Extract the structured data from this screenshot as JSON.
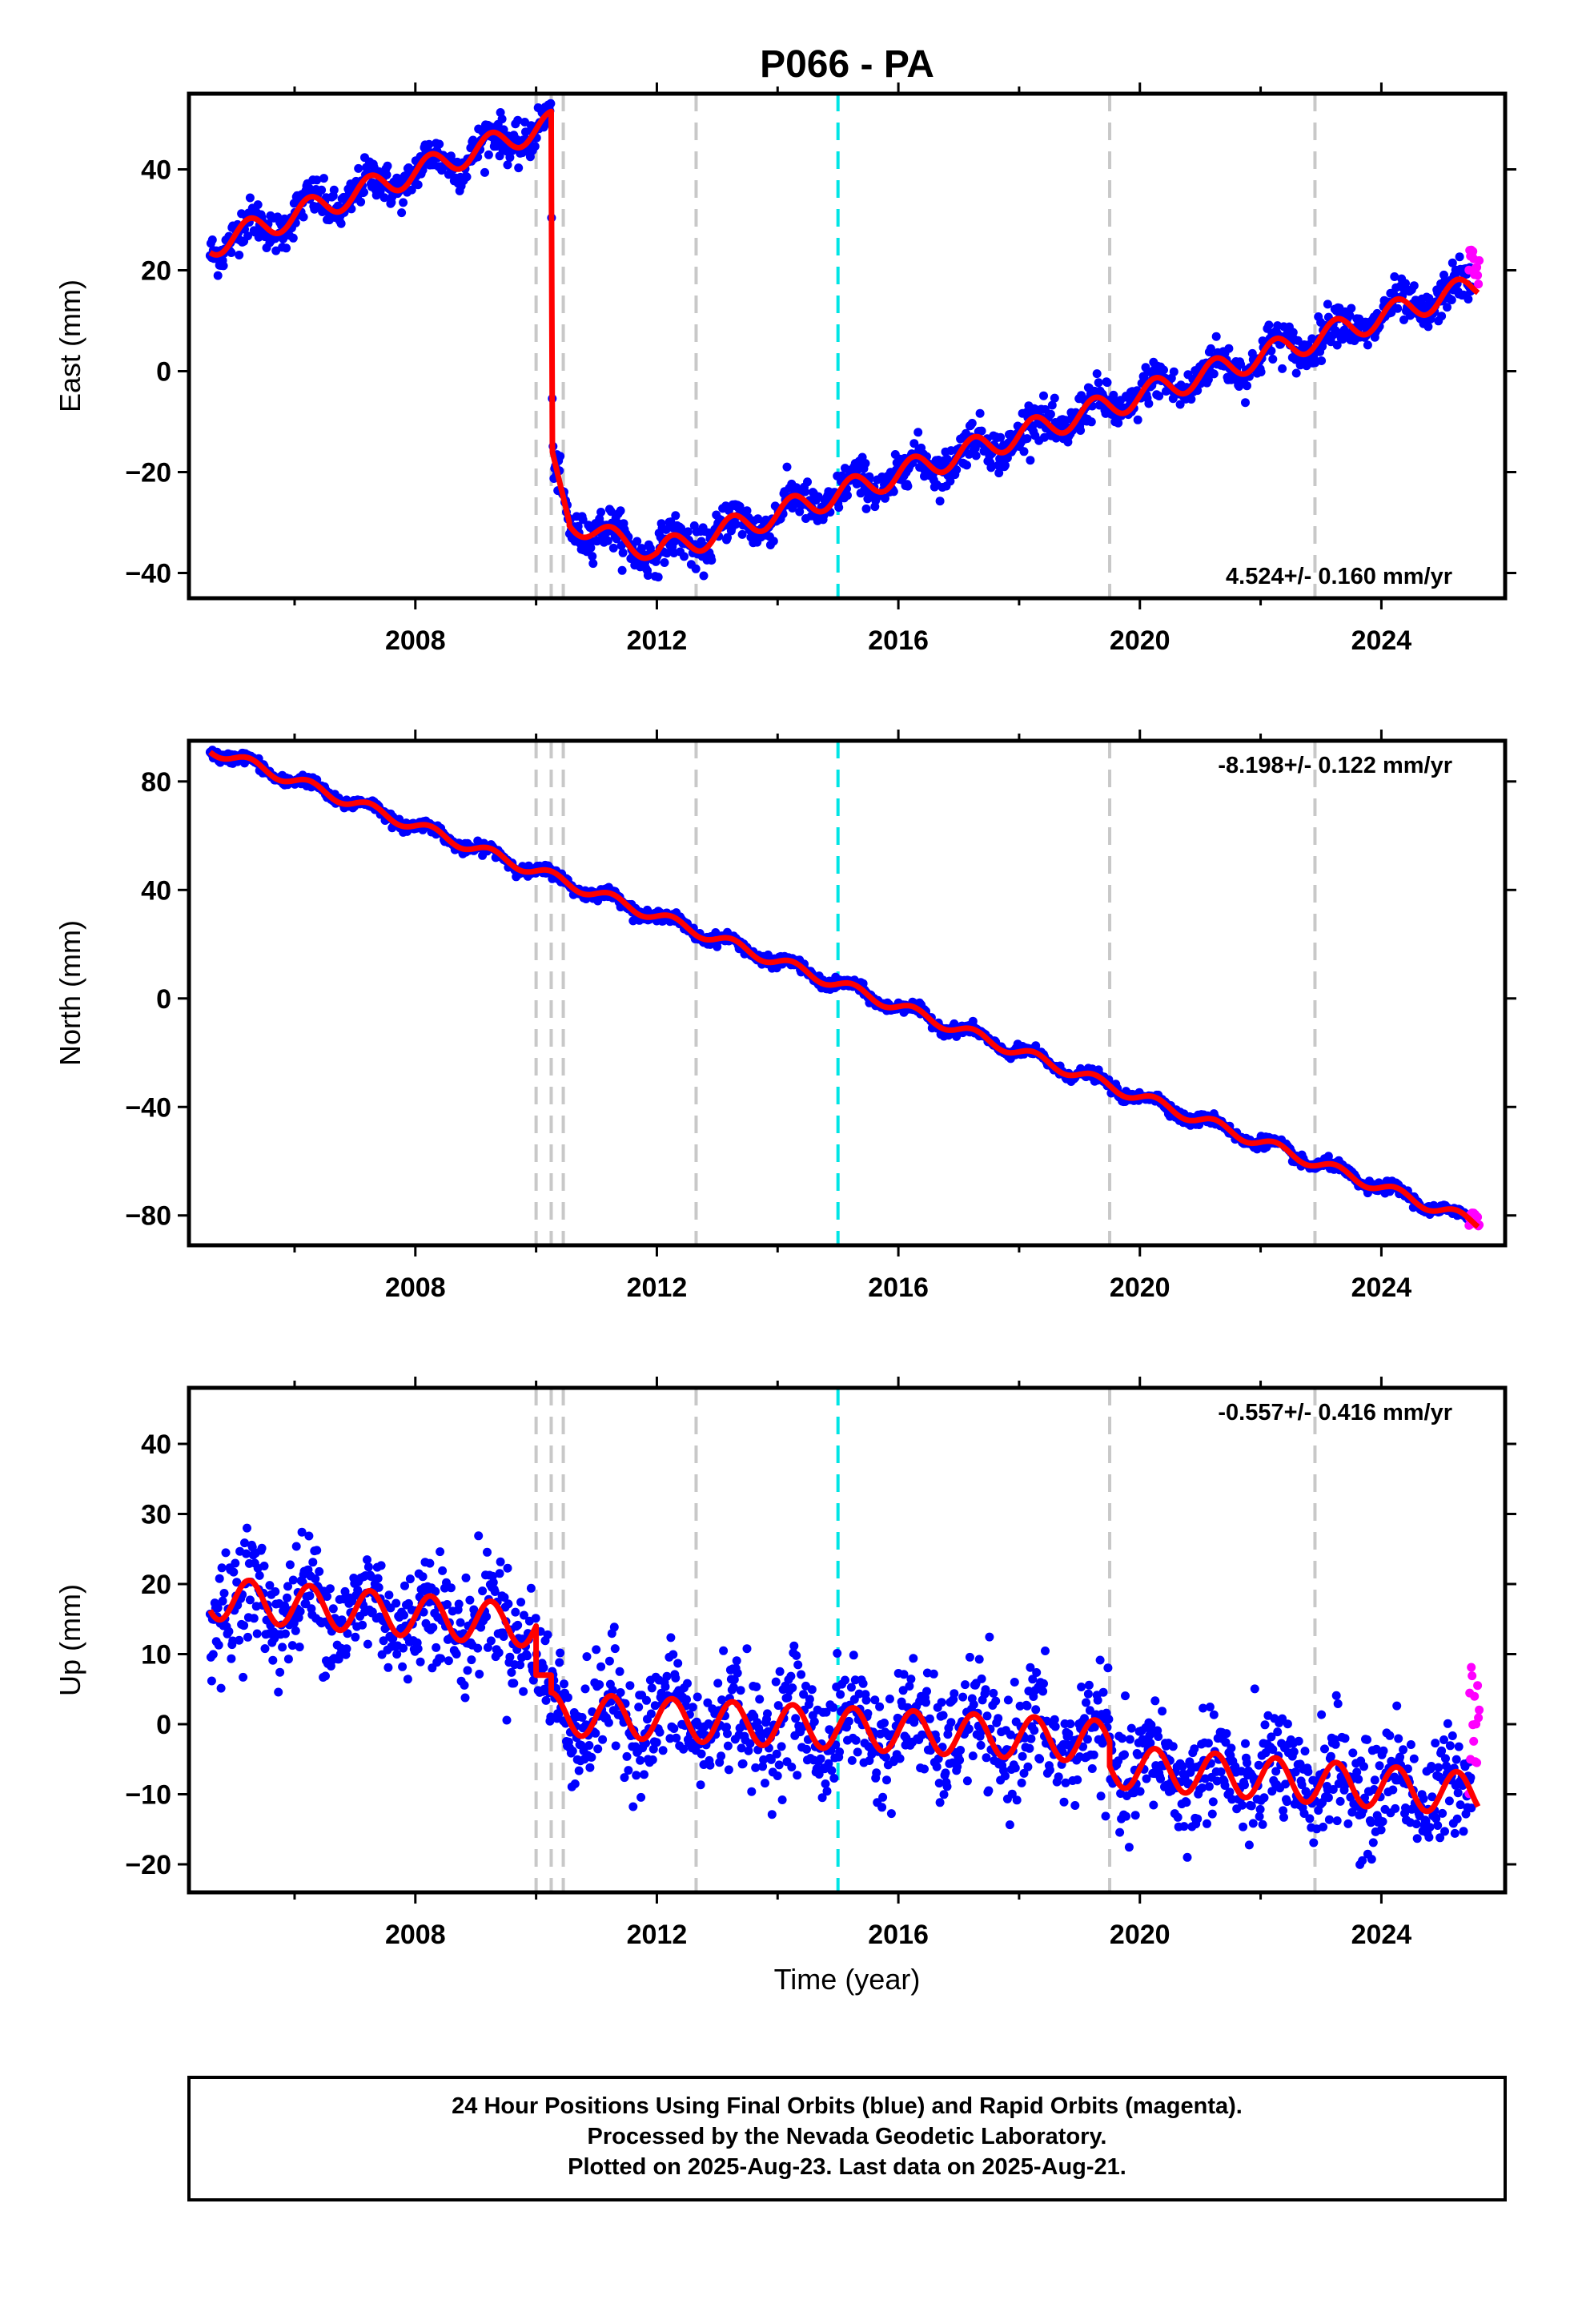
{
  "title": "P066 - PA",
  "xlabel": "Time (year)",
  "footer": {
    "line1": "24 Hour Positions Using Final Orbits (blue) and Rapid Orbits (magenta).",
    "line2": "Processed by the Nevada Geodetic Laboratory.",
    "line3": "Plotted on 2025-Aug-23. Last data on 2025-Aug-21."
  },
  "colors": {
    "final_orbits": "#0000ff",
    "rapid_orbits": "#ff00ff",
    "model_fit": "#ff0000",
    "event_line": "#c8c8c8",
    "reference_line": "#00e5e5"
  },
  "chart_data": [
    {
      "type": "scatter",
      "id": "east",
      "ylabel": "East (mm)",
      "rate": "4.524+/- 0.160 mm/yr",
      "rate_position": "bottom-right",
      "xlim": [
        2004.25,
        2026.05
      ],
      "ylim": [
        -45,
        55
      ],
      "x_ticks": [
        2008,
        2012,
        2016,
        2020,
        2024
      ],
      "y_ticks": [
        -40,
        -20,
        0,
        20,
        40
      ],
      "x_minor_ticks": [
        2006,
        2010,
        2014,
        2018,
        2022
      ],
      "event_lines": [
        2010.0,
        2010.25,
        2010.45,
        2012.65,
        2019.5,
        2022.9
      ],
      "reference_line": 2015.0,
      "series": [
        {
          "role": "final",
          "x_range": [
            2004.6,
            2025.5
          ],
          "noise_sd": 2.0
        },
        {
          "role": "rapid",
          "x_range": [
            2025.45,
            2025.62
          ],
          "y_range": [
            17,
            25
          ]
        },
        {
          "role": "model",
          "segments": [
            {
              "t0": 2004.6,
              "t1": 2010.25,
              "x": [
                2004.6,
                2010.25
              ],
              "y": [
                25,
                49
              ],
              "annual_amplitude": 2.5
            },
            {
              "t0": 2010.25,
              "t1": 2010.27,
              "x": [
                2010.25,
                2010.27
              ],
              "y": [
                48,
                -16
              ],
              "annual_amplitude": 0
            },
            {
              "t0": 2010.27,
              "t1": 2010.55,
              "x": [
                2010.27,
                2010.55
              ],
              "y": [
                -16,
                -30
              ],
              "annual_amplitude": 0
            },
            {
              "t0": 2010.55,
              "t1": 2012.0,
              "x": [
                2010.55,
                2012.0
              ],
              "y": [
                -30,
                -36
              ],
              "annual_amplitude": 2.0
            },
            {
              "t0": 2012.0,
              "t1": 2025.6,
              "x": [
                2012.0,
                2025.6
              ],
              "y": [
                -36,
                17
              ],
              "annual_amplitude": 2.5
            }
          ]
        }
      ]
    },
    {
      "type": "scatter",
      "id": "north",
      "ylabel": "North (mm)",
      "rate": "-8.198+/- 0.122 mm/yr",
      "rate_position": "top-right",
      "xlim": [
        2004.25,
        2026.05
      ],
      "ylim": [
        -91,
        95
      ],
      "x_ticks": [
        2008,
        2012,
        2016,
        2020,
        2024
      ],
      "y_ticks": [
        -80,
        -40,
        0,
        40,
        80
      ],
      "x_minor_ticks": [
        2006,
        2010,
        2014,
        2018,
        2022
      ],
      "event_lines": [
        2010.0,
        2010.25,
        2010.45,
        2012.65,
        2019.5,
        2022.9
      ],
      "reference_line": 2015.0,
      "series": [
        {
          "role": "final",
          "x_range": [
            2004.6,
            2025.5
          ],
          "noise_sd": 1.0
        },
        {
          "role": "rapid",
          "x_range": [
            2025.45,
            2025.62
          ],
          "y_range": [
            -84,
            -79
          ]
        },
        {
          "role": "model",
          "segments": [
            {
              "t0": 2004.6,
              "t1": 2025.6,
              "x": [
                2004.6,
                2025.6
              ],
              "y": [
                92,
                -83
              ],
              "annual_amplitude": 2.0
            }
          ]
        }
      ]
    },
    {
      "type": "scatter",
      "id": "up",
      "ylabel": "Up (mm)",
      "rate": "-0.557+/- 0.416 mm/yr",
      "rate_position": "top-right",
      "xlim": [
        2004.25,
        2026.05
      ],
      "ylim": [
        -24,
        48
      ],
      "x_ticks": [
        2008,
        2012,
        2016,
        2020,
        2024
      ],
      "y_ticks": [
        -20,
        -10,
        0,
        10,
        20,
        30,
        40
      ],
      "x_minor_ticks": [
        2006,
        2010,
        2014,
        2018,
        2022
      ],
      "event_lines": [
        2010.0,
        2010.25,
        2010.45,
        2012.65,
        2019.5,
        2022.9
      ],
      "reference_line": 2015.0,
      "series": [
        {
          "role": "final",
          "x_range": [
            2004.6,
            2025.5
          ],
          "noise_sd": 4.0
        },
        {
          "role": "rapid",
          "x_range": [
            2025.45,
            2025.62
          ],
          "y_range": [
            -10,
            12
          ]
        },
        {
          "role": "model",
          "segments": [
            {
              "t0": 2004.6,
              "t1": 2010.0,
              "x": [
                2004.6,
                2010.0
              ],
              "y": [
                18,
                14
              ],
              "annual_amplitude": 3.0
            },
            {
              "t0": 2010.0,
              "t1": 2010.25,
              "x": [
                2010.0,
                2010.25
              ],
              "y": [
                7,
                7
              ],
              "annual_amplitude": 0
            },
            {
              "t0": 2010.25,
              "t1": 2019.5,
              "x": [
                2010.25,
                2019.5
              ],
              "y": [
                1.5,
                -2.5
              ],
              "annual_amplitude": 3.0
            },
            {
              "t0": 2019.5,
              "t1": 2025.6,
              "x": [
                2019.5,
                2025.6
              ],
              "y": [
                -6,
                -10
              ],
              "annual_amplitude": 3.0
            }
          ]
        }
      ]
    }
  ]
}
